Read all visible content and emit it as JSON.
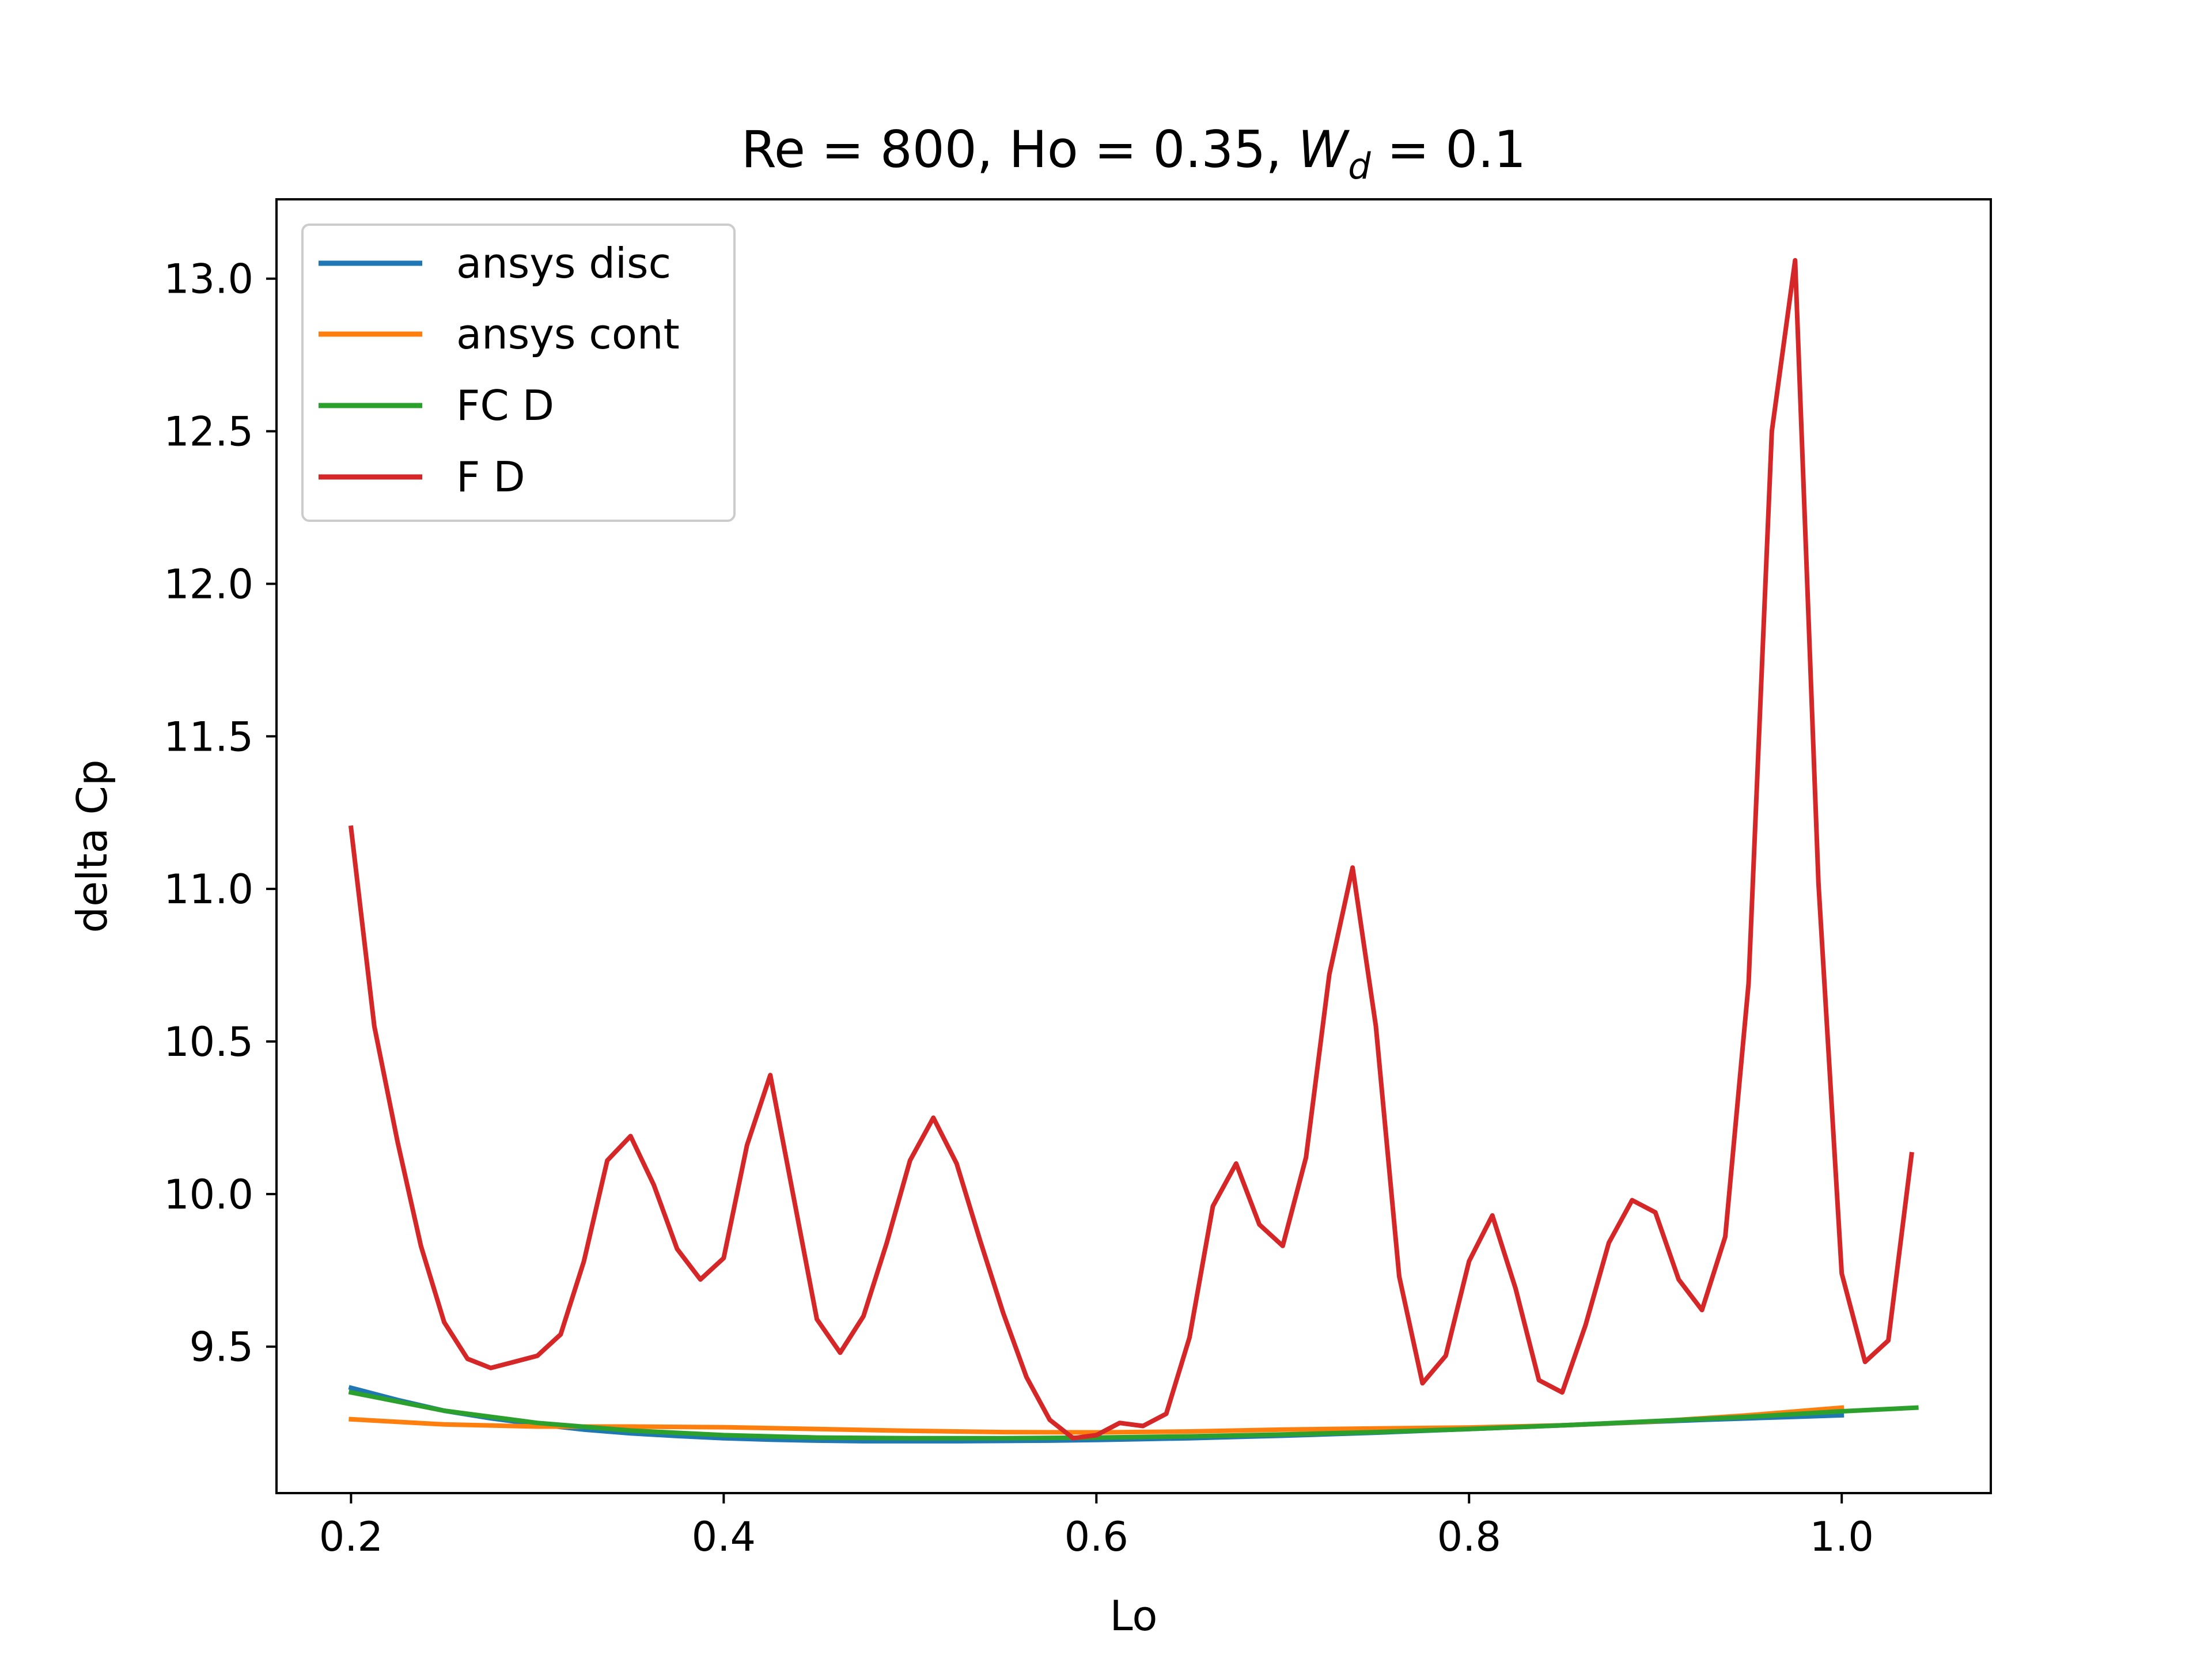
{
  "chart_data": {
    "type": "line",
    "title": {
      "prefix": "Re = 800, Ho = 0.35, ",
      "var": "W",
      "sub": "d",
      "suffix": " = 0.1"
    },
    "xlabel": "Lo",
    "ylabel": "delta Cp",
    "xlim": [
      0.16,
      1.08
    ],
    "ylim": [
      9.02,
      13.26
    ],
    "xticks": [
      0.2,
      0.4,
      0.6,
      0.8,
      1.0
    ],
    "xtick_labels": [
      "0.2",
      "0.4",
      "0.6",
      "0.8",
      "1.0"
    ],
    "yticks": [
      9.5,
      10.0,
      10.5,
      11.0,
      11.5,
      12.0,
      12.5,
      13.0
    ],
    "ytick_labels": [
      "9.5",
      "10.0",
      "10.5",
      "11.0",
      "11.5",
      "12.0",
      "12.5",
      "13.0"
    ],
    "grid": false,
    "legend_position": "upper-left",
    "series": [
      {
        "name": "ansys disc",
        "color": "#1f77b4",
        "x": [
          0.2,
          0.225,
          0.25,
          0.275,
          0.3,
          0.325,
          0.35,
          0.375,
          0.4,
          0.425,
          0.45,
          0.475,
          0.5,
          0.525,
          0.55,
          0.575,
          0.6,
          0.625,
          0.65,
          0.675,
          0.7,
          0.725,
          0.75,
          0.775,
          0.8,
          0.825,
          0.85,
          0.875,
          0.9,
          0.925,
          0.95,
          0.975,
          1.0
        ],
        "y": [
          9.365,
          9.325,
          9.29,
          9.265,
          9.245,
          9.228,
          9.216,
          9.207,
          9.2,
          9.195,
          9.192,
          9.19,
          9.19,
          9.19,
          9.191,
          9.192,
          9.194,
          9.197,
          9.2,
          9.204,
          9.208,
          9.213,
          9.218,
          9.224,
          9.23,
          9.236,
          9.242,
          9.248,
          9.254,
          9.26,
          9.265,
          9.27,
          9.275
        ]
      },
      {
        "name": "ansys cont",
        "color": "#ff7f0e",
        "x": [
          0.2,
          0.25,
          0.3,
          0.35,
          0.4,
          0.45,
          0.5,
          0.55,
          0.6,
          0.65,
          0.7,
          0.75,
          0.8,
          0.85,
          0.9,
          0.95,
          1.0
        ],
        "y": [
          9.262,
          9.245,
          9.238,
          9.238,
          9.236,
          9.23,
          9.224,
          9.22,
          9.219,
          9.222,
          9.228,
          9.232,
          9.235,
          9.242,
          9.255,
          9.275,
          9.3
        ]
      },
      {
        "name": "FC D",
        "color": "#2ca02c",
        "x": [
          0.2,
          0.25,
          0.3,
          0.35,
          0.4,
          0.45,
          0.5,
          0.55,
          0.6,
          0.65,
          0.7,
          0.75,
          0.8,
          0.85,
          0.9,
          0.95,
          1.0,
          1.04
        ],
        "y": [
          9.35,
          9.29,
          9.25,
          9.225,
          9.21,
          9.202,
          9.2,
          9.2,
          9.202,
          9.206,
          9.212,
          9.22,
          9.23,
          9.242,
          9.256,
          9.27,
          9.288,
          9.3
        ]
      },
      {
        "name": "F D",
        "color": "#d62728",
        "x": [
          0.2,
          0.2125,
          0.225,
          0.2375,
          0.25,
          0.2625,
          0.275,
          0.2875,
          0.3,
          0.3125,
          0.325,
          0.3375,
          0.35,
          0.3625,
          0.375,
          0.3875,
          0.4,
          0.4125,
          0.425,
          0.4375,
          0.45,
          0.4625,
          0.475,
          0.4875,
          0.5,
          0.5125,
          0.525,
          0.5375,
          0.55,
          0.5625,
          0.575,
          0.5875,
          0.6,
          0.6125,
          0.625,
          0.6375,
          0.65,
          0.6625,
          0.675,
          0.6875,
          0.7,
          0.7125,
          0.725,
          0.7375,
          0.75,
          0.7625,
          0.775,
          0.7875,
          0.8,
          0.8125,
          0.825,
          0.8375,
          0.85,
          0.8625,
          0.875,
          0.8875,
          0.9,
          0.9125,
          0.925,
          0.9375,
          0.95,
          0.9625,
          0.975,
          0.9875,
          1.0,
          1.0125,
          1.025,
          1.0375
        ],
        "y": [
          11.2,
          10.55,
          10.17,
          9.83,
          9.58,
          9.46,
          9.43,
          9.45,
          9.47,
          9.54,
          9.78,
          10.11,
          10.19,
          10.03,
          9.82,
          9.72,
          9.79,
          10.16,
          10.39,
          9.99,
          9.59,
          9.48,
          9.6,
          9.84,
          10.11,
          10.25,
          10.1,
          9.85,
          9.61,
          9.4,
          9.26,
          9.2,
          9.21,
          9.25,
          9.24,
          9.28,
          9.53,
          9.96,
          10.1,
          9.9,
          9.83,
          10.12,
          10.72,
          11.07,
          10.55,
          9.73,
          9.38,
          9.47,
          9.78,
          9.93,
          9.69,
          9.39,
          9.35,
          9.57,
          9.84,
          9.98,
          9.94,
          9.72,
          9.62,
          9.86,
          10.69,
          12.5,
          13.06,
          11.02,
          9.74,
          9.45,
          9.52,
          10.13
        ]
      }
    ]
  }
}
